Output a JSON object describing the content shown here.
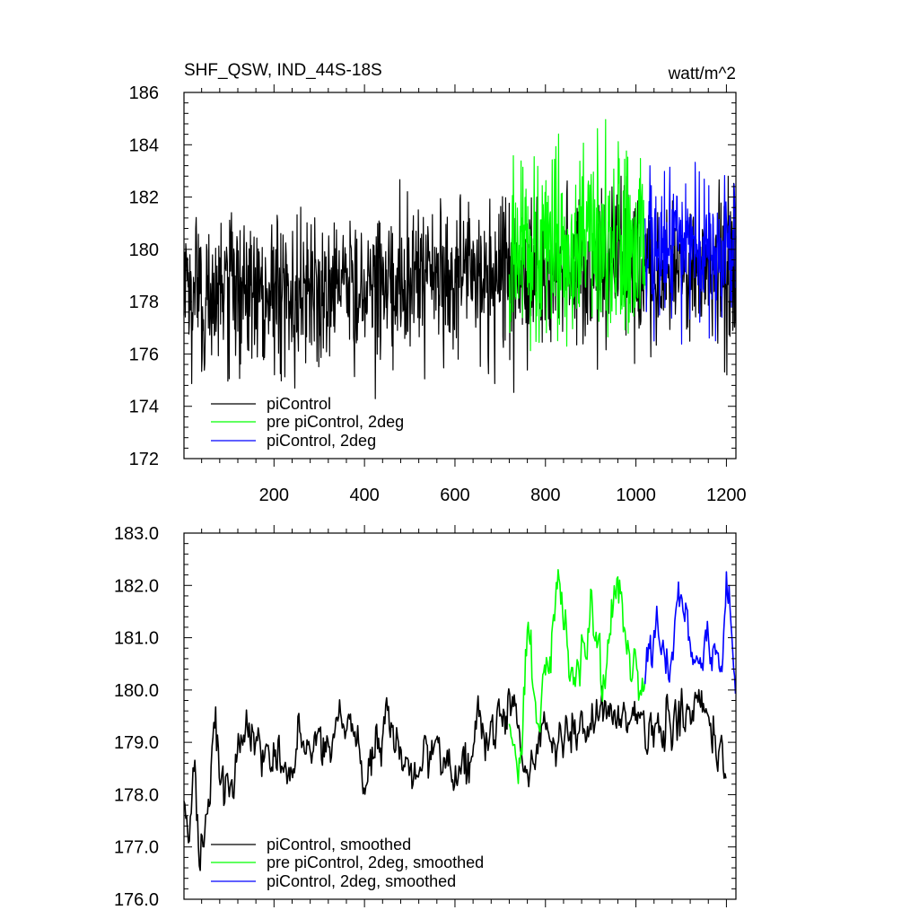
{
  "chart_data": [
    {
      "type": "line",
      "title": "SHF_QSW, IND_44S-18S",
      "units": "watt/m^2",
      "xlim": [
        1,
        1221
      ],
      "ylim": [
        172,
        186
      ],
      "xticks": [
        200,
        400,
        600,
        800,
        1000,
        1200
      ],
      "xtick_labels": [
        "200",
        "400",
        "600",
        "800",
        "1000",
        "1200"
      ],
      "yticks": [
        172,
        174,
        176,
        178,
        180,
        182,
        184,
        186
      ],
      "ytick_labels": [
        "172",
        "174",
        "176",
        "178",
        "180",
        "182",
        "184",
        "186"
      ],
      "grid": false,
      "legend_position": "bottom-left",
      "series": [
        {
          "name": "piControl",
          "color": "#000000",
          "x_range": [
            1,
            1220
          ],
          "summary": {
            "mean_start": 178.3,
            "mean_end": 179.3,
            "min": 173.8,
            "max": 182.8
          },
          "values": [
            [
              1,
              178.2
            ],
            [
              100,
              178.3
            ],
            [
              200,
              178.4
            ],
            [
              300,
              178.5
            ],
            [
              400,
              178.7
            ],
            [
              500,
              178.8
            ],
            [
              600,
              178.9
            ],
            [
              700,
              179.0
            ],
            [
              800,
              179.1
            ],
            [
              900,
              179.1
            ],
            [
              1000,
              179.2
            ],
            [
              1100,
              179.2
            ],
            [
              1220,
              179.3
            ]
          ]
        },
        {
          "name": "pre piControl, 2deg",
          "color": "#00ff00",
          "x_range": [
            720,
            1020
          ],
          "summary": {
            "mean": 180.0,
            "min": 174.8,
            "max": 185.6
          },
          "values": [
            [
              720,
              179.6
            ],
            [
              800,
              180.2
            ],
            [
              900,
              180.1
            ],
            [
              1020,
              180.0
            ]
          ]
        },
        {
          "name": "piControl, 2deg",
          "color": "#0000ff",
          "x_range": [
            1020,
            1221
          ],
          "summary": {
            "mean": 180.0,
            "min": 175.6,
            "max": 184.2
          },
          "values": [
            [
              1020,
              180.0
            ],
            [
              1100,
              180.0
            ],
            [
              1221,
              180.1
            ]
          ]
        }
      ]
    },
    {
      "type": "line",
      "title": "",
      "xlim": [
        1,
        1221
      ],
      "ylim": [
        176,
        183
      ],
      "xticks": [
        200,
        400,
        600,
        800,
        1000,
        1200
      ],
      "xtick_labels": [],
      "yticks": [
        176,
        177,
        178,
        179,
        180,
        181,
        182,
        183
      ],
      "ytick_labels": [
        "176.0",
        "177.0",
        "178.0",
        "179.0",
        "180.0",
        "181.0",
        "182.0",
        "183.0"
      ],
      "grid": false,
      "legend_position": "bottom-left",
      "series": [
        {
          "name": "piControl, smoothed",
          "color": "#000000",
          "x_range": [
            1,
            1200
          ],
          "values": [
            [
              1,
              177.3
            ],
            [
              15,
              177.2
            ],
            [
              25,
              178.5
            ],
            [
              35,
              176.7
            ],
            [
              60,
              178.2
            ],
            [
              70,
              179.3
            ],
            [
              100,
              178.0
            ],
            [
              140,
              179.3
            ],
            [
              200,
              178.6
            ],
            [
              300,
              179.0
            ],
            [
              380,
              179.4
            ],
            [
              400,
              178.0
            ],
            [
              450,
              179.5
            ],
            [
              500,
              178.4
            ],
            [
              550,
              179.0
            ],
            [
              600,
              178.3
            ],
            [
              650,
              179.1
            ],
            [
              700,
              179.6
            ],
            [
              720,
              179.9
            ],
            [
              760,
              178.5
            ],
            [
              800,
              179.3
            ],
            [
              850,
              179.2
            ],
            [
              900,
              179.5
            ],
            [
              950,
              179.5
            ],
            [
              1000,
              179.6
            ],
            [
              1050,
              179.4
            ],
            [
              1100,
              179.3
            ],
            [
              1150,
              179.6
            ],
            [
              1200,
              178.4
            ]
          ]
        },
        {
          "name": "pre piControl, 2deg, smoothed",
          "color": "#00ff00",
          "x_range": [
            720,
            1020
          ],
          "values": [
            [
              720,
              179.8
            ],
            [
              740,
              178.0
            ],
            [
              760,
              181.1
            ],
            [
              790,
              179.6
            ],
            [
              830,
              182.1
            ],
            [
              860,
              180.2
            ],
            [
              900,
              181.4
            ],
            [
              930,
              180.4
            ],
            [
              960,
              182.0
            ],
            [
              990,
              180.3
            ],
            [
              1020,
              180.1
            ]
          ]
        },
        {
          "name": "piControl, 2deg, smoothed",
          "color": "#0000ff",
          "x_range": [
            1020,
            1221
          ],
          "values": [
            [
              1020,
              180.1
            ],
            [
              1040,
              181.6
            ],
            [
              1070,
              180.3
            ],
            [
              1100,
              181.8
            ],
            [
              1130,
              180.6
            ],
            [
              1160,
              180.9
            ],
            [
              1190,
              180.3
            ],
            [
              1200,
              182.1
            ],
            [
              1221,
              180.1
            ]
          ]
        }
      ]
    }
  ]
}
